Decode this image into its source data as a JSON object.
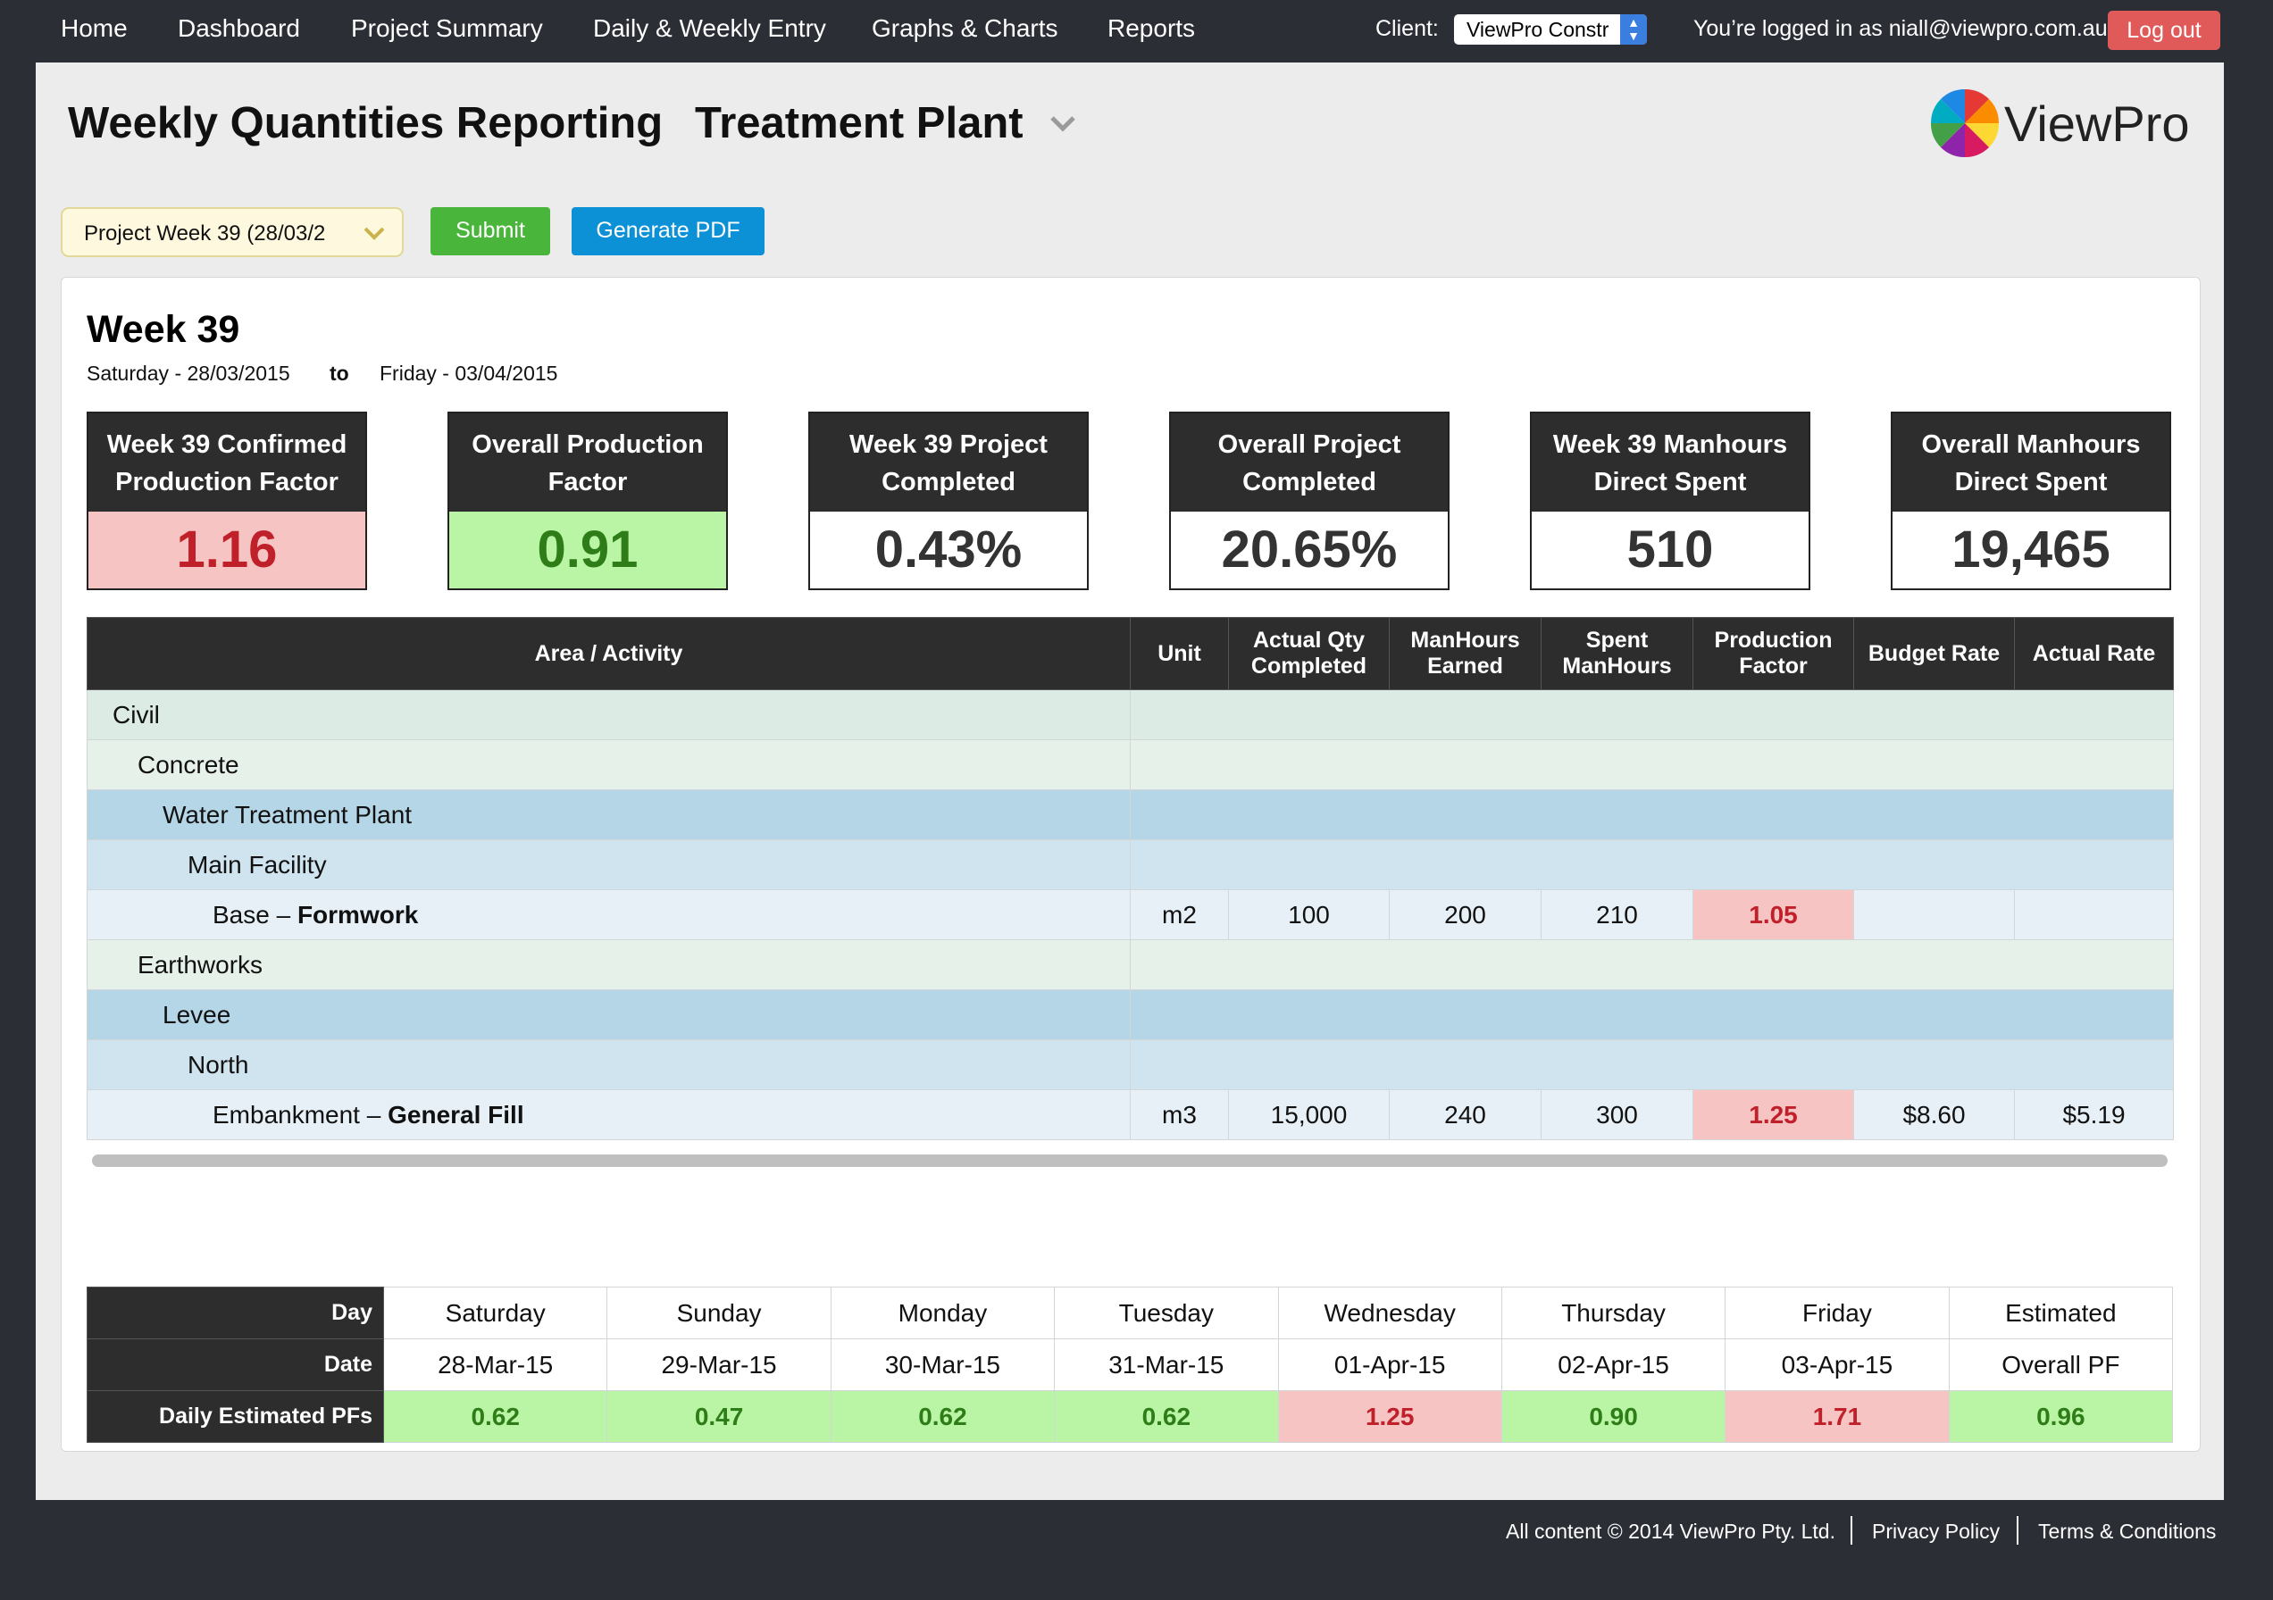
{
  "nav": {
    "items": [
      "Home",
      "Dashboard",
      "Project Summary",
      "Daily & Weekly Entry",
      "Graphs & Charts",
      "Reports"
    ],
    "client_label": "Client:",
    "client_value": "ViewPro Constr",
    "logged_in": "You’re logged in as niall@viewpro.com.au",
    "logout": "Log out"
  },
  "header": {
    "title": "Weekly Quantities Reporting",
    "plant": "Treatment Plant",
    "logo_text": "ViewPro"
  },
  "controls": {
    "week_select": "Project Week 39 (28/03/2",
    "submit": "Submit",
    "generate_pdf": "Generate PDF"
  },
  "report": {
    "week_heading": "Week 39",
    "from": "Saturday - 28/03/2015",
    "to_label": "to",
    "to": "Friday - 03/04/2015",
    "kpis": [
      {
        "title": "Week 39 Confirmed Production Factor",
        "value": "1.16",
        "status": "red"
      },
      {
        "title": "Overall Production Factor",
        "value": "0.91",
        "status": "green"
      },
      {
        "title": "Week 39 Project Completed",
        "value": "0.43%",
        "status": "neutral"
      },
      {
        "title": "Overall Project Completed",
        "value": "20.65%",
        "status": "neutral"
      },
      {
        "title": "Week 39 Manhours Direct Spent",
        "value": "510",
        "status": "neutral"
      },
      {
        "title": "Overall Manhours Direct Spent",
        "value": "19,465",
        "status": "neutral"
      }
    ],
    "table": {
      "headers": [
        "Area / Activity",
        "Unit",
        "Actual Qty Completed",
        "ManHours Earned",
        "Spent ManHours",
        "Production Factor",
        "Budget Rate",
        "Actual Rate"
      ],
      "rows": [
        {
          "level": 0,
          "label": "Civil"
        },
        {
          "level": 1,
          "label": "Concrete"
        },
        {
          "level": 2,
          "label": "Water Treatment Plant"
        },
        {
          "level": 3,
          "label": "Main Facility"
        },
        {
          "level": 4,
          "label": "Base – ",
          "activity": "Formwork",
          "unit": "m2",
          "qty": "100",
          "earned": "200",
          "spent": "210",
          "pf": "1.05",
          "budget_rate": "",
          "actual_rate": ""
        },
        {
          "level": 1,
          "label": "Earthworks"
        },
        {
          "level": 2,
          "label": "Levee"
        },
        {
          "level": 3,
          "label": "North"
        },
        {
          "level": 4,
          "label": "Embankment – ",
          "activity": "General Fill",
          "unit": "m3",
          "qty": "15,000",
          "earned": "240",
          "spent": "300",
          "pf": "1.25",
          "budget_rate": "$8.60",
          "actual_rate": "$5.19"
        }
      ]
    },
    "daily": {
      "row_labels": [
        "Day",
        "Date",
        "Daily Estimated PFs"
      ],
      "days": [
        "Saturday",
        "Sunday",
        "Monday",
        "Tuesday",
        "Wednesday",
        "Thursday",
        "Friday",
        "Estimated"
      ],
      "dates": [
        "28-Mar-15",
        "29-Mar-15",
        "30-Mar-15",
        "31-Mar-15",
        "01-Apr-15",
        "02-Apr-15",
        "03-Apr-15",
        "Overall PF"
      ],
      "pfs": [
        "0.62",
        "0.47",
        "0.62",
        "0.62",
        "1.25",
        "0.90",
        "1.71",
        "0.96"
      ],
      "pf_status": [
        "green",
        "green",
        "green",
        "green",
        "red",
        "green",
        "red",
        "green"
      ]
    }
  },
  "footer": {
    "copyright": "All content © 2014 ViewPro Pty. Ltd.",
    "privacy": "Privacy Policy",
    "terms": "Terms & Conditions"
  },
  "colors": {
    "nav_bg": "#2c2e36",
    "good": "#b9f5a4",
    "bad": "#f7c4c4",
    "submit": "#49b53a",
    "pdf": "#0d91d6",
    "logout": "#e05a5a"
  }
}
